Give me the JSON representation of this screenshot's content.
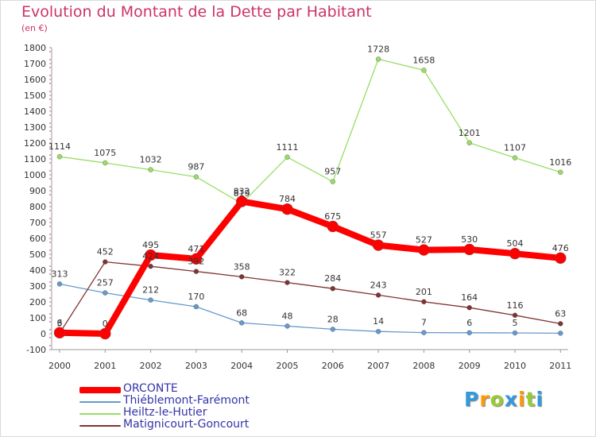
{
  "title": "Evolution du Montant de la Dette par Habitant",
  "subtitle": "(en €)",
  "logo_text": "Proxiti",
  "chart_data": {
    "type": "line",
    "title": "Evolution du Montant de la Dette par Habitant",
    "subtitle": "(en €)",
    "x": [
      "2000",
      "2001",
      "2002",
      "2003",
      "2004",
      "2005",
      "2006",
      "2007",
      "2008",
      "2009",
      "2010",
      "2011"
    ],
    "ylim": [
      -100,
      1800
    ],
    "yticks": [
      -100,
      0,
      100,
      200,
      300,
      400,
      500,
      600,
      700,
      800,
      900,
      1000,
      1100,
      1200,
      1300,
      1400,
      1500,
      1600,
      1700,
      1800
    ],
    "grid": false,
    "legend_position": "bottom-left",
    "series": [
      {
        "name": "ORCONTE",
        "color": "#ff0000",
        "values": [
          6,
          0,
          495,
          471,
          832,
          784,
          675,
          557,
          527,
          530,
          504,
          476
        ],
        "labels": [
          "6",
          "0",
          "495",
          "471",
          "832",
          "784",
          "675",
          "557",
          "527",
          "530",
          "504",
          "476"
        ]
      },
      {
        "name": "Thiéblemont-Farémont",
        "color": "#6699cc",
        "values": [
          313,
          257,
          212,
          170,
          68,
          48,
          28,
          14,
          7,
          6,
          5,
          3
        ],
        "labels": [
          "313",
          "257",
          "212",
          "170",
          "68",
          "48",
          "28",
          "14",
          "7",
          "6",
          "5",
          ""
        ]
      },
      {
        "name": "Heiltz-le-Hutier",
        "color": "#99dd66",
        "values": [
          1114,
          1075,
          1032,
          987,
          819,
          1111,
          957,
          1728,
          1658,
          1201,
          1107,
          1016
        ],
        "labels": [
          "1114",
          "1075",
          "1032",
          "987",
          "819",
          "1111",
          "957",
          "1728",
          "1658",
          "1201",
          "1107",
          "1016"
        ]
      },
      {
        "name": "Matignicourt-Goncourt",
        "color": "#803333",
        "values": [
          3,
          452,
          424,
          392,
          358,
          322,
          284,
          243,
          201,
          164,
          116,
          63
        ],
        "labels": [
          "3",
          "452",
          "424",
          "392",
          "358",
          "322",
          "284",
          "243",
          "201",
          "164",
          "116",
          "63"
        ]
      }
    ]
  }
}
